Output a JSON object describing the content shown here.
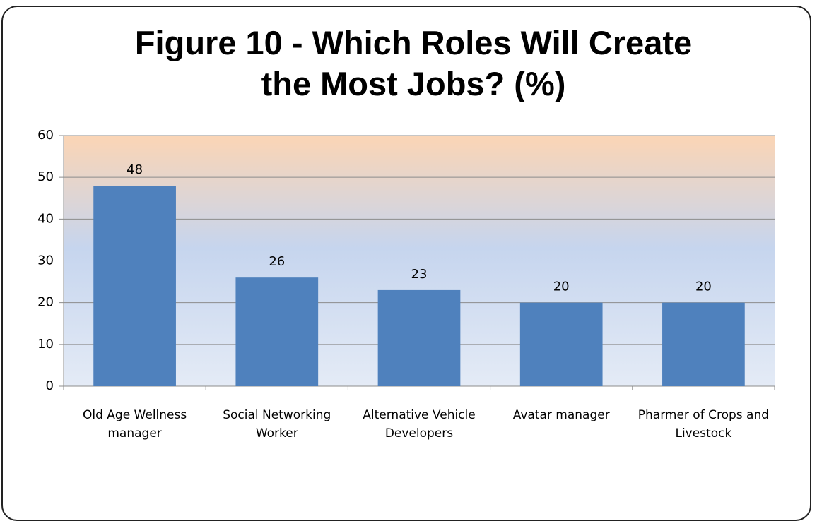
{
  "chart_data": {
    "type": "bar",
    "title": "Figure 10 - Which Roles Will Create the Most Jobs? (%)",
    "categories": [
      "Old Age Wellness manager",
      "Social Networking Worker",
      "Alternative Vehicle Developers",
      "Avatar manager",
      "Pharmer of Crops and Livestock"
    ],
    "values": [
      48,
      26,
      23,
      20,
      20
    ],
    "color": "#4f81bd",
    "ylim": [
      0,
      60
    ],
    "yticks": [
      0,
      10,
      20,
      30,
      40,
      50,
      60
    ],
    "grid": true
  }
}
